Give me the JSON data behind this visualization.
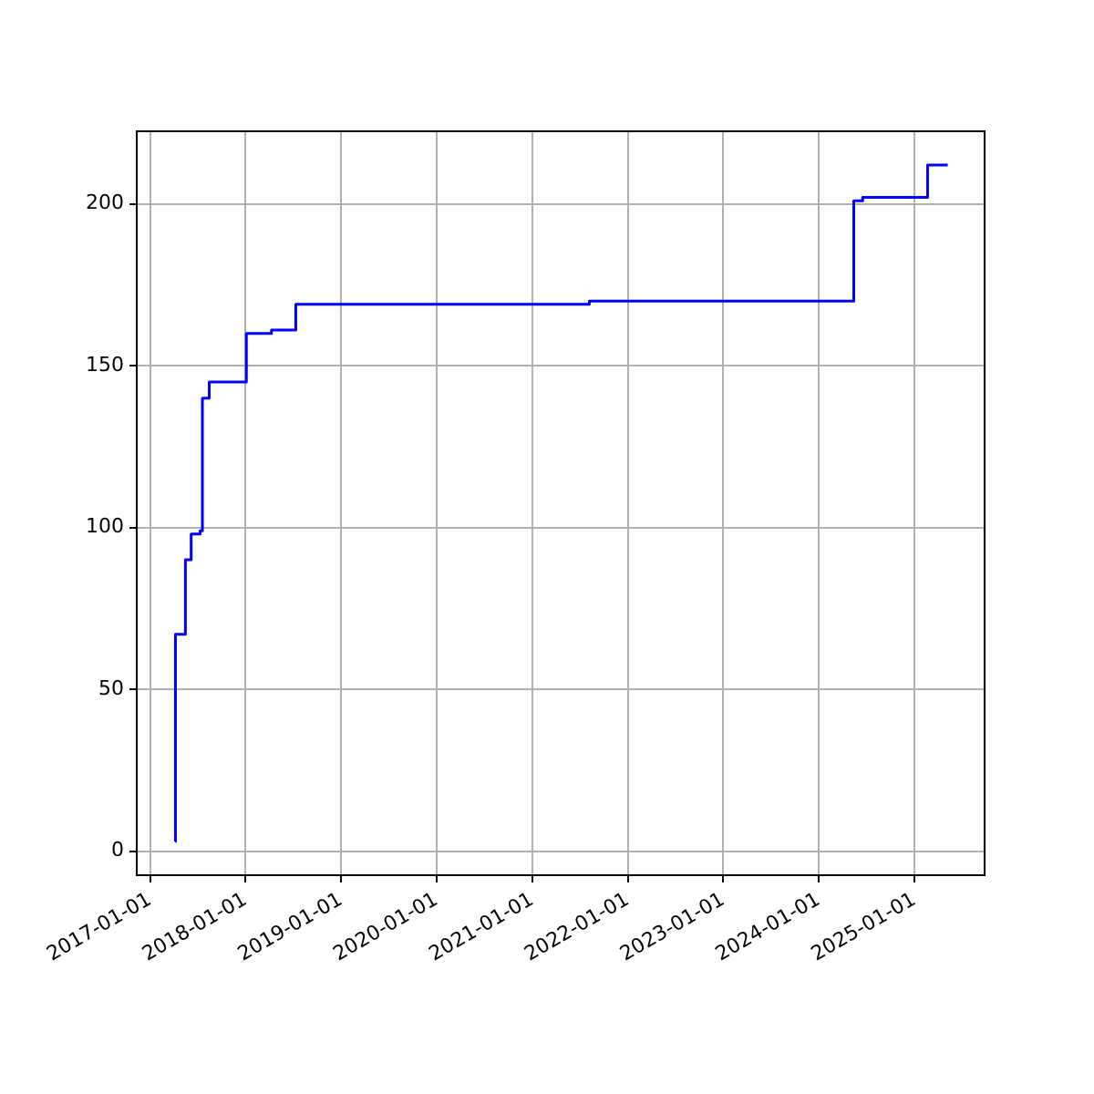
{
  "chart_data": {
    "type": "step",
    "x": [
      "2017-04-07",
      "2017-04-08",
      "2017-05-16",
      "2017-06-07",
      "2017-07-11",
      "2017-07-20",
      "2017-08-15",
      "2018-01-04",
      "2018-04-10",
      "2018-07-12",
      "2021-08-07",
      "2024-05-14",
      "2024-06-17",
      "2025-02-20",
      "2025-05-08"
    ],
    "series": [
      {
        "color": "#0000ff",
        "values": [
          3,
          67,
          90,
          98,
          99,
          140,
          145,
          160,
          161,
          169,
          170,
          201,
          202,
          212,
          212
        ]
      }
    ],
    "xlim": [
      "2016-11-11",
      "2025-09-26"
    ],
    "xticks": [
      "2017-01-01",
      "2018-01-01",
      "2019-01-01",
      "2020-01-01",
      "2021-01-01",
      "2022-01-01",
      "2023-01-01",
      "2024-01-01",
      "2025-01-01"
    ],
    "ylim": [
      -7.45,
      222.45
    ],
    "yticks": [
      0,
      50,
      100,
      150,
      200
    ],
    "grid": true,
    "legend": false,
    "line_style": "solid"
  }
}
